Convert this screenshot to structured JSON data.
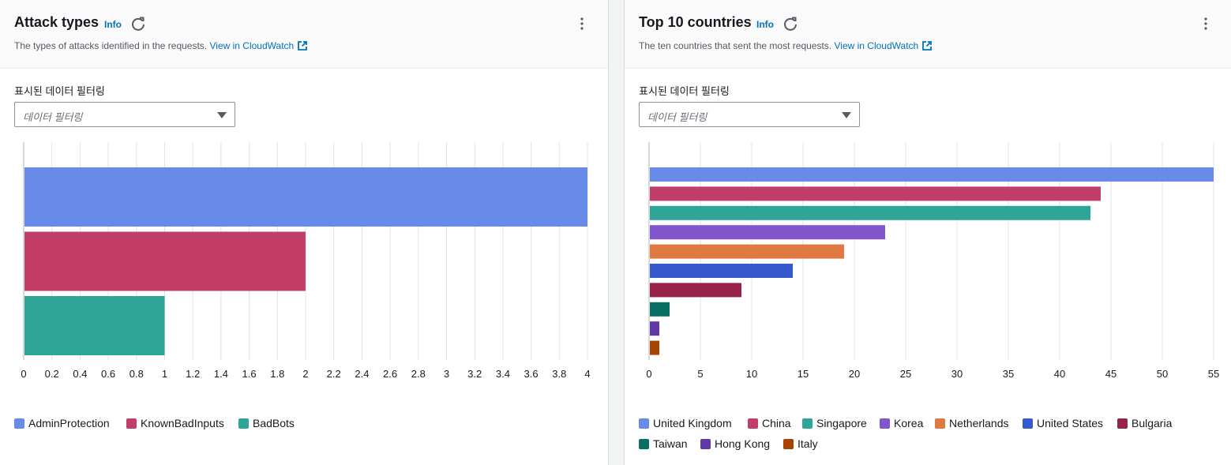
{
  "left_panel": {
    "title": "Attack types",
    "info_label": "Info",
    "description": "The types of attacks identified in the requests.",
    "link_label": "View in CloudWatch",
    "filter_label": "표시된 데이터 필터링",
    "filter_placeholder": "데이터 필터링"
  },
  "right_panel": {
    "title": "Top 10 countries",
    "info_label": "Info",
    "description": "The ten countries that sent the most requests.",
    "link_label": "View in CloudWatch",
    "filter_label": "표시된 데이터 필터링",
    "filter_placeholder": "데이터 필터링"
  },
  "chart_data": [
    {
      "type": "bar",
      "orientation": "horizontal",
      "categories": [
        "AdminProtection",
        "KnownBadInputs",
        "BadBots"
      ],
      "values": [
        4,
        2,
        1
      ],
      "colors": [
        "#688ae8",
        "#c33d69",
        "#2ea597"
      ],
      "xlim": [
        0,
        4
      ],
      "x_ticks": [
        "0",
        "0.2",
        "0.4",
        "0.6",
        "0.8",
        "1",
        "1.2",
        "1.4",
        "1.6",
        "1.8",
        "2",
        "2.2",
        "2.4",
        "2.6",
        "2.8",
        "3",
        "3.2",
        "3.4",
        "3.6",
        "3.8",
        "4"
      ],
      "grid": true,
      "legend": "bottom-left"
    },
    {
      "type": "bar",
      "orientation": "horizontal",
      "categories": [
        "United Kingdom",
        "China",
        "Singapore",
        "Korea",
        "Netherlands",
        "United States",
        "Bulgaria",
        "Taiwan",
        "Hong Kong",
        "Italy"
      ],
      "values": [
        55,
        44,
        43,
        23,
        19,
        14,
        9,
        2,
        1,
        1
      ],
      "colors": [
        "#688ae8",
        "#c33d69",
        "#2ea597",
        "#8456ce",
        "#e07941",
        "#3759ce",
        "#962249",
        "#096f64",
        "#6237a7",
        "#a84401"
      ],
      "xlim": [
        0,
        55
      ],
      "x_ticks": [
        "0",
        "5",
        "10",
        "15",
        "20",
        "25",
        "30",
        "35",
        "40",
        "45",
        "50",
        "55"
      ],
      "grid": true,
      "legend": "bottom-left"
    }
  ]
}
